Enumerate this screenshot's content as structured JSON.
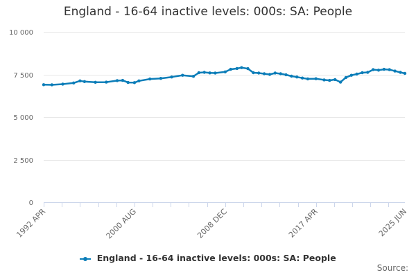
{
  "chart_data": {
    "type": "line",
    "title": "England - 16-64 inactive levels: 000s: SA: People",
    "xlabel": "",
    "ylabel": "",
    "ylim": [
      0,
      10000
    ],
    "y_ticks": [
      {
        "value": 0,
        "label": "0"
      },
      {
        "value": 2500,
        "label": "2 500"
      },
      {
        "value": 5000,
        "label": "5 000"
      },
      {
        "value": 7500,
        "label": "7 500"
      },
      {
        "value": 10000,
        "label": "10 000"
      }
    ],
    "x_ticks": [
      "1992 APR",
      "2000 AUG",
      "2008 DEC",
      "2017 APR",
      "2025 JUN"
    ],
    "grid": "horizontal",
    "legend_position": "bottom-center",
    "series": [
      {
        "name": "England - 16-64 inactive levels: 000s: SA: People",
        "color": "#0b7db8",
        "x": [
          "1992 APR",
          "1993 JAN",
          "1994 JAN",
          "1995 JAN",
          "1995 AUG",
          "1996 JAN",
          "1997 JAN",
          "1998 JAN",
          "1999 JAN",
          "1999 JUL",
          "2000 JAN",
          "2000 AUG",
          "2001 JAN",
          "2002 JAN",
          "2003 JAN",
          "2004 JAN",
          "2005 JAN",
          "2006 JAN",
          "2006 JUL",
          "2007 JAN",
          "2007 JUL",
          "2008 JAN",
          "2008 DEC",
          "2009 JUN",
          "2010 JAN",
          "2010 JUN",
          "2011 JAN",
          "2011 JUL",
          "2012 JAN",
          "2012 JUL",
          "2013 JAN",
          "2013 JUL",
          "2014 JAN",
          "2014 JUL",
          "2015 JAN",
          "2015 JUL",
          "2016 JAN",
          "2016 JUL",
          "2017 APR",
          "2018 JAN",
          "2018 JUL",
          "2019 JAN",
          "2019 JUL",
          "2020 JAN",
          "2020 JUL",
          "2021 JAN",
          "2021 JUL",
          "2022 JAN",
          "2022 JUL",
          "2023 JAN",
          "2023 JUL",
          "2024 JAN",
          "2024 JUL",
          "2025 JAN",
          "2025 JUN"
        ],
        "values": [
          6900,
          6890,
          6930,
          7000,
          7120,
          7080,
          7040,
          7050,
          7140,
          7150,
          7030,
          7020,
          7120,
          7230,
          7270,
          7350,
          7450,
          7390,
          7600,
          7620,
          7590,
          7580,
          7650,
          7800,
          7850,
          7900,
          7840,
          7600,
          7580,
          7540,
          7500,
          7580,
          7540,
          7480,
          7400,
          7350,
          7290,
          7240,
          7250,
          7180,
          7150,
          7200,
          7050,
          7320,
          7450,
          7520,
          7600,
          7620,
          7780,
          7750,
          7800,
          7780,
          7700,
          7620,
          7560
        ]
      }
    ]
  },
  "legend": {
    "label": "England - 16-64 inactive levels: 000s: SA: People"
  },
  "source": {
    "label": "Source:"
  }
}
